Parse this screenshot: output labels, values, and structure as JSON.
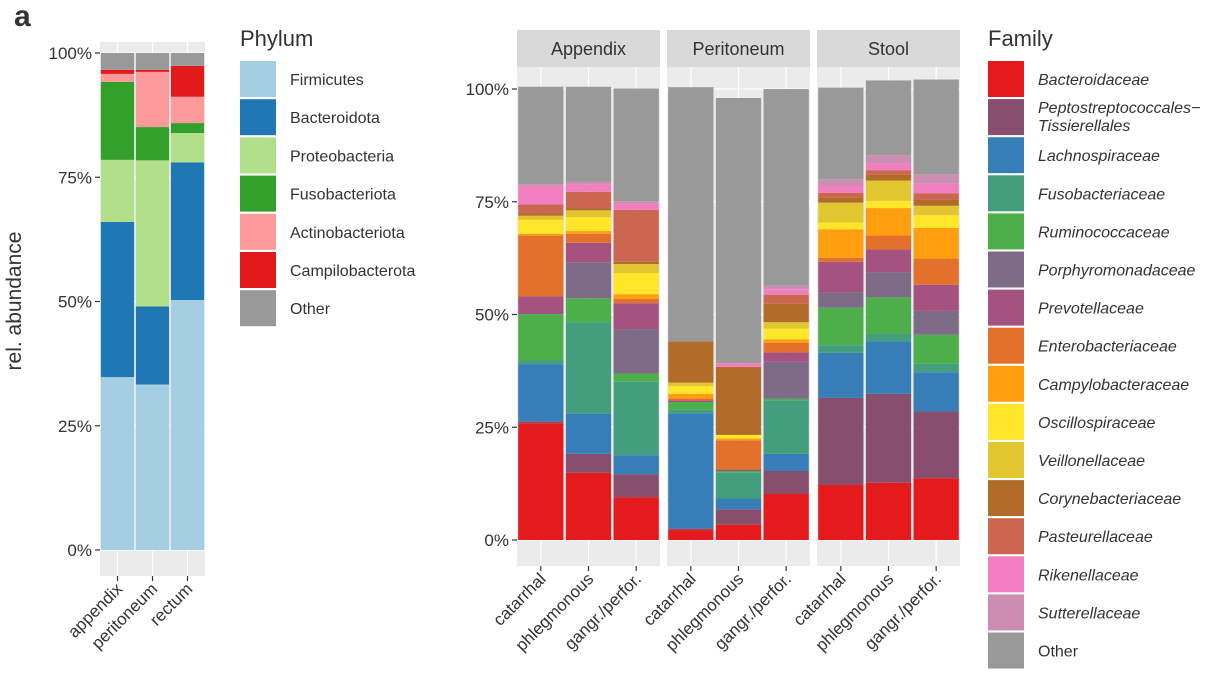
{
  "panel_label": "a",
  "chart_data": [
    {
      "type": "bar",
      "stacked": true,
      "title": "",
      "xlabel": "",
      "ylabel": "rel. abundance",
      "ylim": [
        0,
        100
      ],
      "yticks": [
        "0%",
        "25%",
        "50%",
        "75%",
        "100%"
      ],
      "categories": [
        "appendix",
        "peritoneum",
        "rectum"
      ],
      "legend_title": "Phylum",
      "legend_position": "right",
      "series": [
        {
          "name": "Firmicutes",
          "color": "#a6cee3",
          "values": [
            34.8,
            33.3,
            50.3
          ]
        },
        {
          "name": "Bacteroidota",
          "color": "#1f78b4",
          "values": [
            31.2,
            15.7,
            27.7
          ]
        },
        {
          "name": "Proteobacteria",
          "color": "#b2df8a",
          "values": [
            12.5,
            29.4,
            5.9
          ]
        },
        {
          "name": "Fusobacteriota",
          "color": "#33a02c",
          "values": [
            15.7,
            6.7,
            2.0
          ]
        },
        {
          "name": "Actinobacteriota",
          "color": "#fb9a99",
          "values": [
            1.6,
            11.1,
            5.3
          ]
        },
        {
          "name": "Campilobacterota",
          "color": "#e31a1c",
          "values": [
            0.8,
            0.4,
            6.2
          ]
        },
        {
          "name": "Other",
          "color": "#999999",
          "values": [
            3.4,
            3.4,
            2.6
          ]
        }
      ]
    },
    {
      "type": "bar",
      "stacked": true,
      "title": "",
      "xlabel": "",
      "ylabel": "",
      "ylim": [
        0,
        100
      ],
      "yticks": [
        "0%",
        "25%",
        "50%",
        "75%",
        "100%"
      ],
      "facets": [
        "Appendix",
        "Peritoneum",
        "Stool"
      ],
      "categories": [
        "catarrhal",
        "phlegmonous",
        "gangr./perfor."
      ],
      "legend_title": "Family",
      "legend_position": "right",
      "series": [
        {
          "name": "Bacteroidaceae",
          "color": "#e41a1c",
          "values": [
            [
              25.9,
              14.9,
              9.5
            ],
            [
              2.2,
              3.4,
              10.2
            ],
            [
              12.2,
              12.7,
              13.7
            ]
          ]
        },
        {
          "name": "Peptostreptococcales−Tissierellales",
          "color": "#874f6d",
          "values": [
            [
              0.4,
              4.2,
              5.1
            ],
            [
              0.4,
              3.4,
              5.1
            ],
            [
              19.3,
              19.7,
              14.8
            ]
          ]
        },
        {
          "name": "Lachnospiraceae",
          "color": "#377eb8",
          "values": [
            [
              12.7,
              9.0,
              4.2
            ],
            [
              25.5,
              2.4,
              3.8
            ],
            [
              10.0,
              11.6,
              8.7
            ]
          ]
        },
        {
          "name": "Fusobacteriaceae",
          "color": "#439e7d",
          "values": [
            [
              0.8,
              20.2,
              16.3
            ],
            [
              0.8,
              5.7,
              11.8
            ],
            [
              1.7,
              1.8,
              1.9
            ]
          ]
        },
        {
          "name": "Ruminococcaceae",
          "color": "#4daf4a",
          "values": [
            [
              10.3,
              5.3,
              1.8
            ],
            [
              1.7,
              0.4,
              0.4
            ],
            [
              8.3,
              8.0,
              6.4
            ]
          ]
        },
        {
          "name": "Porphyromonadaceae",
          "color": "#7d6b87",
          "values": [
            [
              0.0,
              8.0,
              9.8
            ],
            [
              0.0,
              0.0,
              8.2
            ],
            [
              3.4,
              5.6,
              5.3
            ]
          ]
        },
        {
          "name": "Prevotellaceae",
          "color": "#a65280",
          "values": [
            [
              3.9,
              4.3,
              5.8
            ],
            [
              0.4,
              0.4,
              2.1
            ],
            [
              6.8,
              5.0,
              5.8
            ]
          ]
        },
        {
          "name": "Enterobacteriaceae",
          "color": "#e3712b",
          "values": [
            [
              13.5,
              2.0,
              1.0
            ],
            [
              0.4,
              6.4,
              2.1
            ],
            [
              0.9,
              3.1,
              5.8
            ]
          ]
        },
        {
          "name": "Campylobacteraceae",
          "color": "#ff9f0f",
          "values": [
            [
              0.4,
              0.6,
              1.0
            ],
            [
              1.0,
              0.4,
              0.8
            ],
            [
              6.3,
              6.1,
              6.8
            ]
          ]
        },
        {
          "name": "Oscillospiraceae",
          "color": "#ffe629",
          "values": [
            [
              3.1,
              3.1,
              4.7
            ],
            [
              1.7,
              0.8,
              2.4
            ],
            [
              1.5,
              1.6,
              2.8
            ]
          ]
        },
        {
          "name": "Veillonellaceae",
          "color": "#e1c62f",
          "values": [
            [
              0.9,
              1.5,
              2.0
            ],
            [
              0.8,
              0.0,
              1.4
            ],
            [
              4.4,
              4.5,
              2.1
            ]
          ]
        },
        {
          "name": "Corynebacteriaceae",
          "color": "#b16c29",
          "values": [
            [
              0.5,
              0.5,
              0.5
            ],
            [
              9.1,
              15.1,
              4.1
            ],
            [
              1.2,
              1.3,
              1.3
            ]
          ]
        },
        {
          "name": "Pasteurellaceae",
          "color": "#cb6651",
          "values": [
            [
              2.0,
              3.6,
              11.5
            ],
            [
              0.0,
              0.0,
              2.0
            ],
            [
              1.0,
              1.0,
              1.5
            ]
          ]
        },
        {
          "name": "Rikenellaceae",
          "color": "#f17fc0",
          "values": [
            [
              4.0,
              1.7,
              1.4
            ],
            [
              0.0,
              0.8,
              1.2
            ],
            [
              1.5,
              1.5,
              2.1
            ]
          ]
        },
        {
          "name": "Sutterellaceae",
          "color": "#cc8db2",
          "values": [
            [
              0.5,
              0.5,
              0.5
            ],
            [
              0.0,
              0.0,
              0.8
            ],
            [
              1.5,
              1.8,
              2.1
            ]
          ]
        },
        {
          "name": "Other",
          "color": "#999999",
          "values": [
            [
              21.6,
              21.1,
              25.0
            ],
            [
              56.4,
              58.8,
              43.6
            ],
            [
              20.3,
              16.6,
              21.0
            ]
          ]
        }
      ]
    }
  ]
}
